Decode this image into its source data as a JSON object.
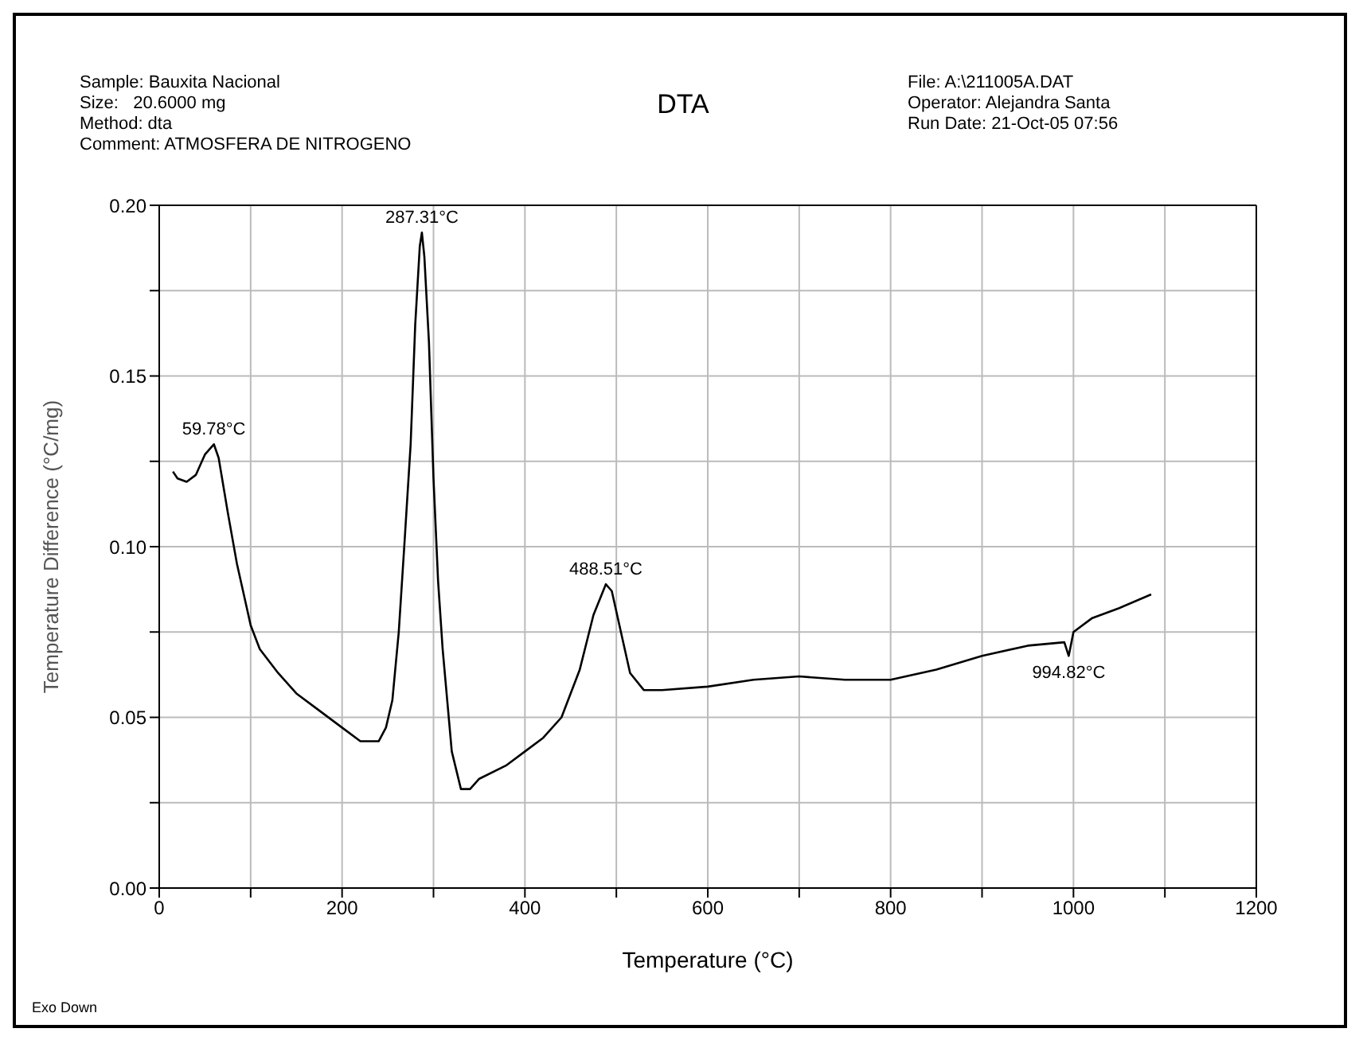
{
  "chart_data": {
    "type": "line",
    "title": "DTA",
    "xlabel": "Temperature (°C)",
    "ylabel": "Temperature Difference (°C/mg)",
    "annotations": [
      "Sample: Bauxita Nacional",
      "Size:   20.6000 mg",
      "Method: dta",
      "Comment: ATMOSFERA DE NITROGENO",
      "File: A:\\211005A.DAT",
      "Operator: Alejandra Santa",
      "Run Date: 21-Oct-05 07:56",
      "Exo Down",
      {
        "text": "59.78°C",
        "x": 59.78,
        "y": 0.13
      },
      {
        "text": "287.31°C",
        "x": 287.31,
        "y": 0.192
      },
      {
        "text": "488.51°C",
        "x": 488.51,
        "y": 0.089
      },
      {
        "text": "994.82°C",
        "x": 994.82,
        "y": 0.068
      }
    ],
    "x": [
      15,
      20,
      30,
      40,
      50,
      59.78,
      65,
      75,
      85,
      100,
      110,
      130,
      150,
      170,
      200,
      220,
      240,
      248,
      255,
      262,
      268,
      275,
      280,
      285,
      287.31,
      290,
      295,
      300,
      305,
      310,
      320,
      330,
      340,
      350,
      380,
      400,
      420,
      440,
      460,
      475,
      488.51,
      495,
      505,
      515,
      530,
      550,
      600,
      650,
      700,
      750,
      800,
      850,
      900,
      950,
      990,
      994.82,
      1000,
      1020,
      1050,
      1085
    ],
    "series": [
      {
        "color": "#000000",
        "values": [
          0.122,
          0.12,
          0.119,
          0.121,
          0.127,
          0.13,
          0.126,
          0.11,
          0.095,
          0.077,
          0.07,
          0.063,
          0.057,
          0.053,
          0.047,
          0.043,
          0.043,
          0.047,
          0.055,
          0.075,
          0.1,
          0.13,
          0.165,
          0.188,
          0.192,
          0.185,
          0.16,
          0.12,
          0.09,
          0.07,
          0.04,
          0.029,
          0.029,
          0.032,
          0.036,
          0.04,
          0.044,
          0.05,
          0.064,
          0.08,
          0.089,
          0.087,
          0.075,
          0.063,
          0.058,
          0.058,
          0.059,
          0.061,
          0.062,
          0.061,
          0.061,
          0.064,
          0.068,
          0.071,
          0.072,
          0.068,
          0.075,
          0.079,
          0.082,
          0.086
        ]
      }
    ],
    "xlim": [
      0,
      1200
    ],
    "xticks": [
      0,
      {
        "value": 100,
        "label": null
      },
      200,
      {
        "value": 300,
        "label": null
      },
      400,
      {
        "value": 500,
        "label": null
      },
      600,
      {
        "value": 700,
        "label": null
      },
      800,
      {
        "value": 900,
        "label": null
      },
      1000,
      {
        "value": 1100,
        "label": null
      },
      1200
    ],
    "ylim": [
      0,
      0.2
    ],
    "yticks": [
      {
        "value": 0,
        "label": "0.00"
      },
      {
        "value": 0.025,
        "label": null
      },
      0.05,
      {
        "value": 0.075,
        "label": null
      },
      {
        "value": 0.1,
        "label": "0.10"
      },
      {
        "value": 0.125,
        "label": null
      },
      0.15,
      {
        "value": 0.175,
        "label": null
      },
      {
        "value": 0.2,
        "label": "0.20"
      }
    ],
    "grid": true,
    "marker": "none",
    "line_style": "solid",
    "legend": false
  }
}
